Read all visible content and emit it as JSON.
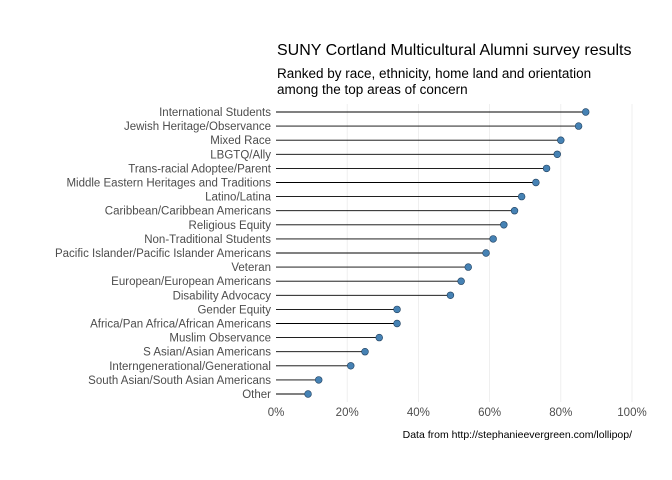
{
  "chart_data": {
    "type": "lollipop",
    "title": "SUNY Cortland Multicultural Alumni survey results",
    "subtitle_lines": [
      "Ranked by race, ethnicity, home land and orientation",
      "among the top areas of concern"
    ],
    "caption": "Data from http://stephanieevergreen.com/lollipop/",
    "xlim": [
      0,
      1
    ],
    "x_ticks": [
      0,
      0.2,
      0.4,
      0.6,
      0.8,
      1.0
    ],
    "x_tick_labels": [
      "0%",
      "20%",
      "40%",
      "60%",
      "80%",
      "100%"
    ],
    "grid": "vertical",
    "point_color": "#4682b4",
    "categories": [
      "International Students",
      "Jewish Heritage/Observance",
      "Mixed Race",
      "LBGTQ/Ally",
      "Trans-racial Adoptee/Parent",
      "Middle Eastern Heritages and Traditions",
      "Latino/Latina",
      "Caribbean/Caribbean Americans",
      "Religious Equity",
      "Non-Traditional Students",
      "Pacific Islander/Pacific Islander Americans",
      "Veteran",
      "European/European Americans",
      "Disability Advocacy",
      "Gender Equity",
      "Africa/Pan Africa/African Americans",
      "Muslim Observance",
      "S Asian/Asian Americans",
      "Interngenerational/Generational",
      "South Asian/South Asian Americans",
      "Other"
    ],
    "values": [
      0.87,
      0.85,
      0.8,
      0.79,
      0.76,
      0.73,
      0.69,
      0.67,
      0.64,
      0.61,
      0.59,
      0.54,
      0.52,
      0.49,
      0.34,
      0.34,
      0.29,
      0.25,
      0.21,
      0.12,
      0.09
    ]
  }
}
